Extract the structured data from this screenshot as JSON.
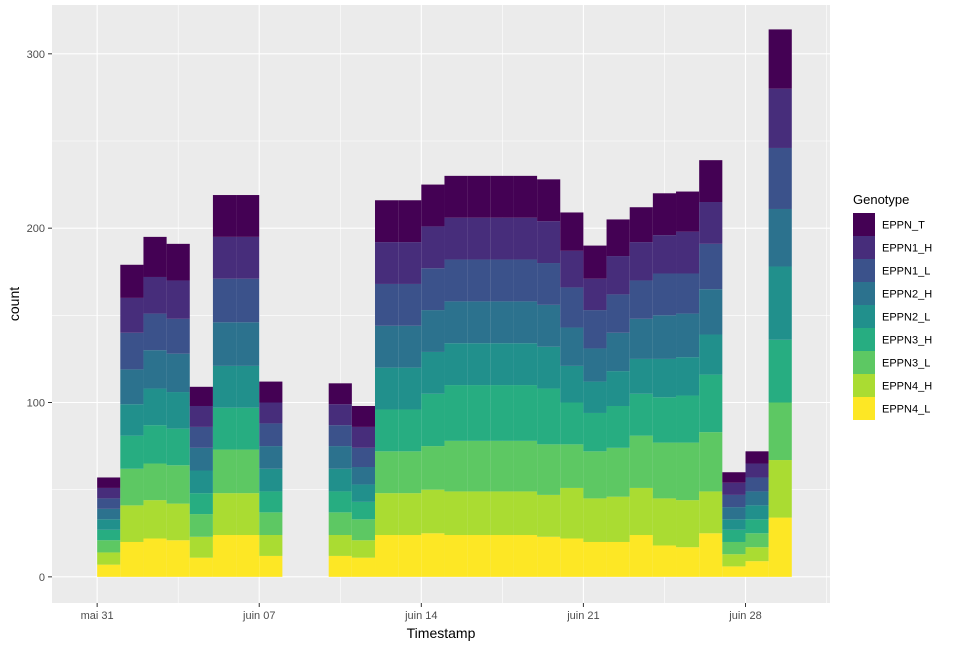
{
  "chart_data": {
    "type": "bar",
    "stacked": true,
    "xlabel": "Timestamp",
    "ylabel": "count",
    "ylim": [
      -15,
      328
    ],
    "yticks": [
      0,
      100,
      200,
      300
    ],
    "xrange_days": [
      -1.95,
      31.65
    ],
    "xticks": [
      {
        "label": "mai 31",
        "day": 0
      },
      {
        "label": "juin 07",
        "day": 7
      },
      {
        "label": "juin 14",
        "day": 14
      },
      {
        "label": "juin 21",
        "day": 21
      },
      {
        "label": "juin 28",
        "day": 28
      }
    ],
    "grid": true,
    "legend_position": "right",
    "legend_title": "Genotype",
    "genotypes": [
      {
        "name": "EPPN_T",
        "color": "#440154"
      },
      {
        "name": "EPPN1_H",
        "color": "#472D7B"
      },
      {
        "name": "EPPN1_L",
        "color": "#3B528B"
      },
      {
        "name": "EPPN2_H",
        "color": "#2C728E"
      },
      {
        "name": "EPPN2_L",
        "color": "#21908C"
      },
      {
        "name": "EPPN3_H",
        "color": "#27AD81"
      },
      {
        "name": "EPPN3_L",
        "color": "#5DC863"
      },
      {
        "name": "EPPN4_H",
        "color": "#AADC32"
      },
      {
        "name": "EPPN4_L",
        "color": "#FDE725"
      }
    ],
    "bars": [
      {
        "day": 0.5,
        "stack": [
          6,
          6,
          6,
          6,
          6,
          6,
          7,
          7,
          7
        ]
      },
      {
        "day": 1.5,
        "stack": [
          19,
          20,
          21,
          20,
          18,
          19,
          21,
          21,
          20
        ]
      },
      {
        "day": 2.5,
        "stack": [
          23,
          21,
          21,
          22,
          21,
          22,
          21,
          22,
          22
        ]
      },
      {
        "day": 3.5,
        "stack": [
          21,
          22,
          20,
          22,
          21,
          21,
          22,
          21,
          21
        ]
      },
      {
        "day": 4.5,
        "stack": [
          11,
          12,
          12,
          13,
          13,
          12,
          13,
          12,
          11
        ]
      },
      {
        "day": 5.5,
        "stack": [
          24,
          24,
          25,
          25,
          24,
          24,
          25,
          24,
          24
        ]
      },
      {
        "day": 6.5,
        "stack": [
          24,
          24,
          25,
          25,
          24,
          24,
          25,
          24,
          24
        ]
      },
      {
        "day": 7.5,
        "stack": [
          12,
          12,
          13,
          13,
          13,
          12,
          13,
          12,
          12
        ]
      },
      {
        "day": 10.5,
        "stack": [
          12,
          12,
          12,
          13,
          13,
          12,
          13,
          12,
          12
        ]
      },
      {
        "day": 11.5,
        "stack": [
          12,
          12,
          11,
          10,
          10,
          10,
          12,
          10,
          11
        ]
      },
      {
        "day": 12.5,
        "stack": [
          24,
          24,
          24,
          24,
          24,
          24,
          24,
          24,
          24
        ]
      },
      {
        "day": 13.5,
        "stack": [
          24,
          24,
          24,
          24,
          24,
          24,
          24,
          24,
          24
        ]
      },
      {
        "day": 14.5,
        "stack": [
          24,
          24,
          24,
          24,
          24,
          30,
          25,
          25,
          25
        ]
      },
      {
        "day": 15.5,
        "stack": [
          24,
          24,
          24,
          24,
          24,
          32,
          29,
          25,
          24
        ]
      },
      {
        "day": 16.5,
        "stack": [
          24,
          24,
          24,
          24,
          24,
          32,
          29,
          25,
          24
        ]
      },
      {
        "day": 17.5,
        "stack": [
          24,
          24,
          24,
          24,
          24,
          32,
          29,
          25,
          24
        ]
      },
      {
        "day": 18.5,
        "stack": [
          24,
          24,
          24,
          24,
          24,
          32,
          29,
          25,
          24
        ]
      },
      {
        "day": 19.5,
        "stack": [
          24,
          24,
          24,
          24,
          24,
          32,
          29,
          24,
          23
        ]
      },
      {
        "day": 20.5,
        "stack": [
          22,
          21,
          23,
          22,
          21,
          24,
          25,
          29,
          22
        ]
      },
      {
        "day": 21.5,
        "stack": [
          19,
          18,
          22,
          19,
          18,
          22,
          27,
          25,
          20
        ]
      },
      {
        "day": 22.5,
        "stack": [
          21,
          22,
          22,
          22,
          20,
          24,
          28,
          26,
          20
        ]
      },
      {
        "day": 23.5,
        "stack": [
          20,
          22,
          22,
          23,
          20,
          24,
          30,
          27,
          24
        ]
      },
      {
        "day": 24.5,
        "stack": [
          24,
          22,
          24,
          25,
          22,
          26,
          32,
          27,
          18
        ]
      },
      {
        "day": 25.5,
        "stack": [
          23,
          24,
          23,
          25,
          22,
          27,
          33,
          27,
          17
        ]
      },
      {
        "day": 26.5,
        "stack": [
          24,
          24,
          26,
          26,
          23,
          33,
          34,
          24,
          25
        ]
      },
      {
        "day": 27.5,
        "stack": [
          6,
          7,
          7,
          7,
          6,
          7,
          7,
          7,
          6
        ]
      },
      {
        "day": 28.5,
        "stack": [
          7,
          8,
          8,
          8,
          8,
          8,
          8,
          8,
          9
        ]
      },
      {
        "day": 29.5,
        "stack": [
          34,
          34,
          35,
          33,
          42,
          36,
          33,
          33,
          34
        ]
      }
    ]
  }
}
